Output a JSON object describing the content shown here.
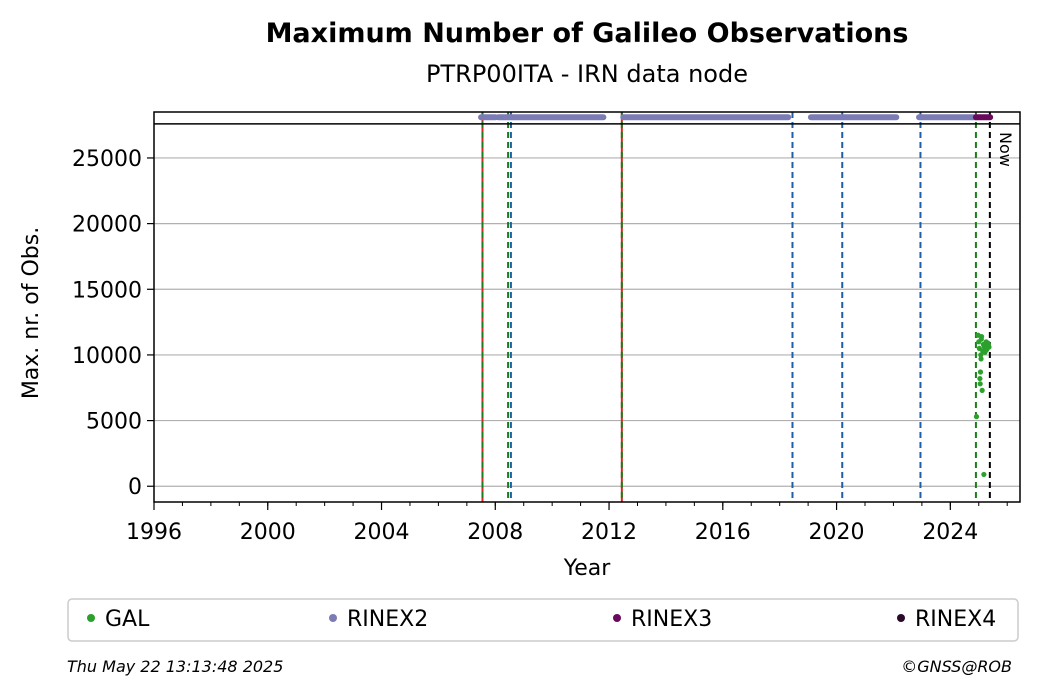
{
  "chart_data": {
    "type": "scatter",
    "title": "Maximum Number of Galileo Observations",
    "subtitle": "PTRP00ITA - IRN data node",
    "xlabel": "Year",
    "ylabel": "Max. nr. of Obs.",
    "xlim": [
      1996.0,
      2026.45
    ],
    "ylim": [
      -1200,
      28500
    ],
    "x_ticks": [
      "1996",
      "2000",
      "2004",
      "2008",
      "2012",
      "2016",
      "2020",
      "2024"
    ],
    "y_ticks": [
      "0",
      "5000",
      "10000",
      "15000",
      "20000",
      "25000"
    ],
    "grid": "horizontal",
    "legend_position": "bottom",
    "colors": {
      "GAL": "#2ca02c",
      "RINEX2": "#7b7bb5",
      "RINEX3": "#6a0a5e",
      "RINEX4": "#2b0a2b",
      "red_line": "#d62728",
      "green_line": "#1a7f1a",
      "blue_line": "#1f5fa8",
      "now_line": "#000000"
    },
    "series": [
      {
        "name": "GAL",
        "x": [
          2024.92,
          2024.98,
          2025.0,
          2025.02,
          2025.04,
          2025.05,
          2025.06,
          2025.07,
          2025.08,
          2025.09,
          2025.1,
          2025.12,
          2025.14,
          2025.16,
          2025.18,
          2025.2,
          2025.22,
          2025.24,
          2025.26,
          2025.28,
          2025.3,
          2025.32,
          2025.34,
          2025.36
        ],
        "y": [
          5300,
          11500,
          11000,
          10500,
          8200,
          7800,
          8700,
          10000,
          9700,
          11200,
          11400,
          7300,
          10300,
          10800,
          900,
          10600,
          10200,
          10900,
          11000,
          10400,
          10700,
          10900,
          10800,
          10600
        ]
      },
      {
        "name": "RINEX2",
        "segments": [
          [
            2007.5,
            2008.0
          ],
          [
            2008.1,
            2011.8
          ],
          [
            2012.5,
            2018.3
          ],
          [
            2019.1,
            2022.1
          ],
          [
            2022.9,
            2024.9
          ]
        ],
        "y": 28100
      },
      {
        "name": "RINEX3",
        "segments": [
          [
            2024.9,
            2025.4
          ]
        ],
        "y": 28100
      },
      {
        "name": "RINEX4",
        "segments": [],
        "y": 28100
      }
    ],
    "vertical_lines": [
      {
        "x": 2007.55,
        "kind": "red_line"
      },
      {
        "x": 2007.55,
        "kind": "green_line"
      },
      {
        "x": 2008.45,
        "kind": "green_line"
      },
      {
        "x": 2008.55,
        "kind": "blue_line"
      },
      {
        "x": 2012.45,
        "kind": "red_line"
      },
      {
        "x": 2012.45,
        "kind": "green_line"
      },
      {
        "x": 2018.45,
        "kind": "blue_line"
      },
      {
        "x": 2020.2,
        "kind": "blue_line"
      },
      {
        "x": 2022.95,
        "kind": "blue_line"
      },
      {
        "x": 2024.9,
        "kind": "green_line"
      },
      {
        "x": 2025.39,
        "kind": "now_line"
      }
    ],
    "now_label": "Now",
    "ceiling_y": 27600
  },
  "footer": {
    "timestamp": "Thu May 22 13:13:48 2025",
    "credit": "©GNSS@ROB"
  }
}
